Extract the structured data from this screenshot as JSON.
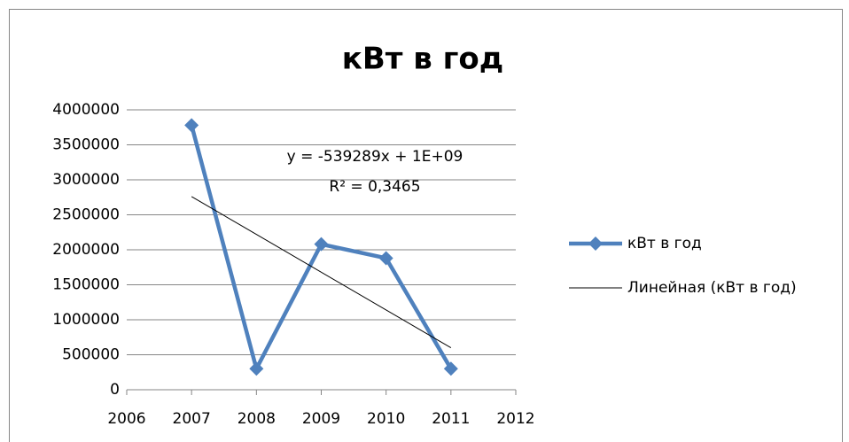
{
  "chart_data": {
    "type": "scatter",
    "title": "кВт в год",
    "annotations": [
      "y = -539289x + 1E+09",
      "R² = 0,3465"
    ],
    "series": [
      {
        "name": "кВт в год",
        "color": "#4f81bd",
        "marker": "diamond",
        "x": [
          2007,
          2008,
          2009,
          2010,
          2011
        ],
        "values": [
          3780000,
          300000,
          2080000,
          1880000,
          300000
        ]
      },
      {
        "name": "Линейная (кВт в год)",
        "color": "#000000",
        "x": [
          2007,
          2011
        ],
        "values": [
          2760000,
          600000
        ]
      }
    ],
    "xlim": [
      2006,
      2012
    ],
    "xticks": [
      2006,
      2007,
      2008,
      2009,
      2010,
      2011,
      2012
    ],
    "ylim": [
      0,
      4000000
    ],
    "yticks": [
      0,
      500000,
      1000000,
      1500000,
      2000000,
      2500000,
      3000000,
      3500000,
      4000000
    ],
    "grid": true,
    "legend": "right"
  }
}
